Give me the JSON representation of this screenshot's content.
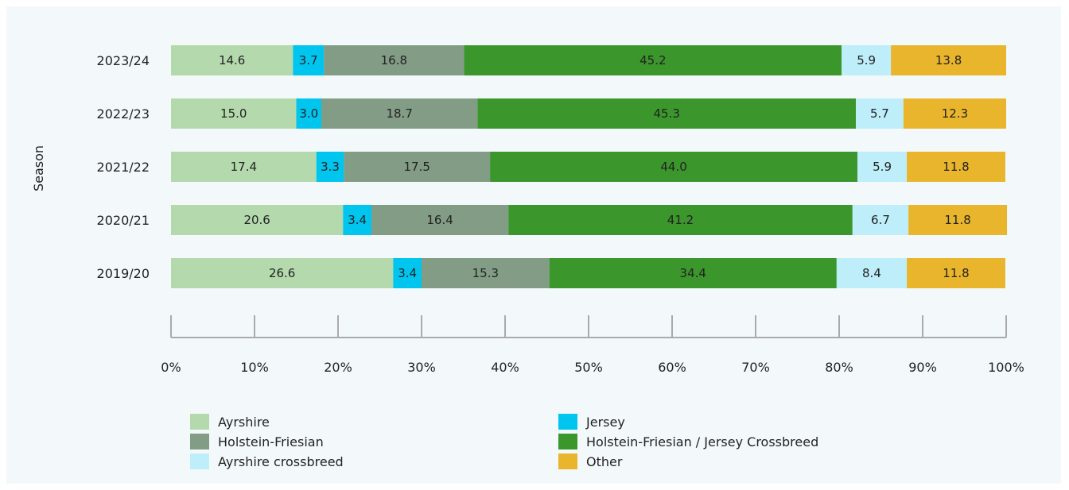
{
  "chart_data": {
    "type": "bar",
    "orientation": "horizontal",
    "stacked": true,
    "ylabel": "Season",
    "xlabel": "",
    "xlim": [
      0,
      100
    ],
    "x_ticks": [
      "0%",
      "10%",
      "20%",
      "30%",
      "40%",
      "50%",
      "60%",
      "70%",
      "80%",
      "90%",
      "100%"
    ],
    "categories": [
      "2023/24",
      "2022/23",
      "2021/22",
      "2020/21",
      "2019/20"
    ],
    "series": [
      {
        "name": "Ayrshire",
        "color": "#b3d9ad",
        "values": [
          14.6,
          15.0,
          17.4,
          20.6,
          26.6
        ],
        "labels": [
          "14.6",
          "15.0",
          "17.4",
          "20.6",
          "26.6"
        ]
      },
      {
        "name": "Jersey",
        "color": "#00c5ee",
        "values": [
          3.7,
          3.0,
          3.3,
          3.4,
          3.4
        ],
        "labels": [
          "3.7",
          "3.0",
          "3.3",
          "3.4",
          "3.4"
        ]
      },
      {
        "name": "Holstein-Friesian",
        "color": "#829c85",
        "values": [
          16.8,
          18.7,
          17.5,
          16.4,
          15.3
        ],
        "labels": [
          "16.8",
          "18.7",
          "17.5",
          "16.4",
          "15.3"
        ]
      },
      {
        "name": "Holstein-Friesian / Jersey Crossbreed",
        "color": "#3b962b",
        "values": [
          45.2,
          45.3,
          44.0,
          41.2,
          34.4
        ],
        "labels": [
          "45.2",
          "45.3",
          "44.0",
          "41.2",
          "34.4"
        ]
      },
      {
        "name": "Ayrshire crossbreed",
        "color": "#bdeefa",
        "values": [
          5.9,
          5.7,
          5.9,
          6.7,
          8.4
        ],
        "labels": [
          "5.9",
          "5.7",
          "5.9",
          "6.7",
          "8.4"
        ]
      },
      {
        "name": "Other",
        "color": "#e9b52c",
        "values": [
          13.8,
          12.3,
          11.8,
          11.8,
          11.8
        ],
        "labels": [
          "13.8",
          "12.3",
          "11.8",
          "11.8",
          "11.8"
        ]
      }
    ],
    "legend": {
      "placement": "bottom",
      "order": [
        "Ayrshire",
        "Jersey",
        "Holstein-Friesian",
        "Holstein-Friesian / Jersey Crossbreed",
        "Ayrshire crossbreed",
        "Other"
      ]
    },
    "grid": false,
    "axis_color": "#aaaaaa"
  }
}
